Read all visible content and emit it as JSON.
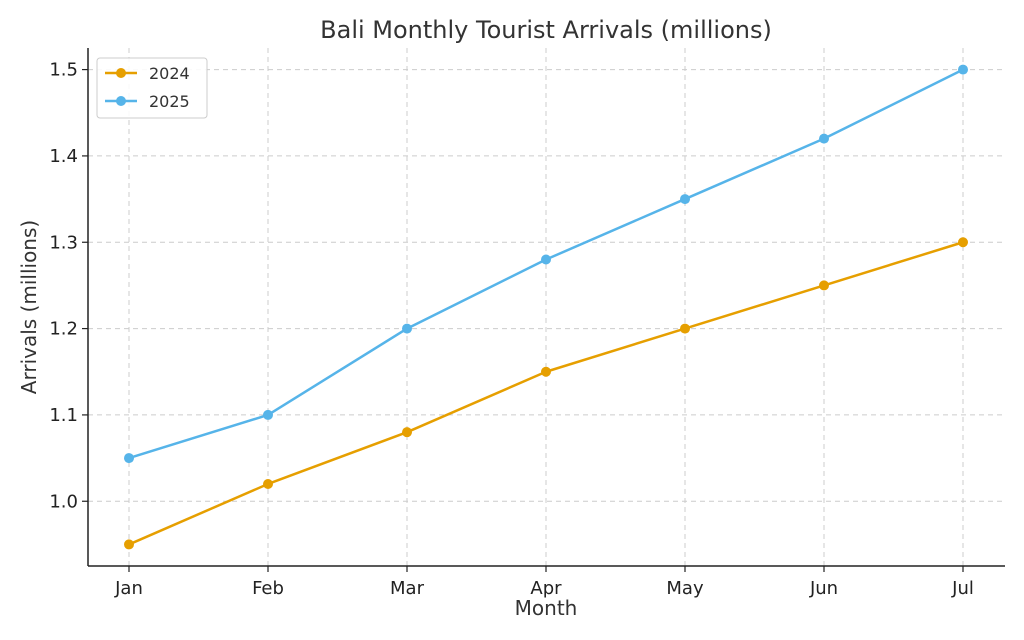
{
  "chart_data": {
    "type": "line",
    "title": "Bali Monthly Tourist Arrivals (millions)",
    "xlabel": "Month",
    "ylabel": "Arrivals (millions)",
    "categories": [
      "Jan",
      "Feb",
      "Mar",
      "Apr",
      "May",
      "Jun",
      "Jul"
    ],
    "series": [
      {
        "name": "2024",
        "color": "#E69F00",
        "values": [
          0.95,
          1.02,
          1.08,
          1.15,
          1.2,
          1.25,
          1.3
        ]
      },
      {
        "name": "2025",
        "color": "#56B4E9",
        "values": [
          1.05,
          1.1,
          1.2,
          1.28,
          1.35,
          1.42,
          1.5
        ]
      }
    ],
    "ylim": [
      0.925,
      1.525
    ],
    "yticks": [
      1.0,
      1.1,
      1.2,
      1.3,
      1.4,
      1.5
    ],
    "ytick_labels": [
      "1.0",
      "1.1",
      "1.2",
      "1.3",
      "1.4",
      "1.5"
    ],
    "grid": true,
    "legend_position": "top-left",
    "marker": "circle"
  }
}
